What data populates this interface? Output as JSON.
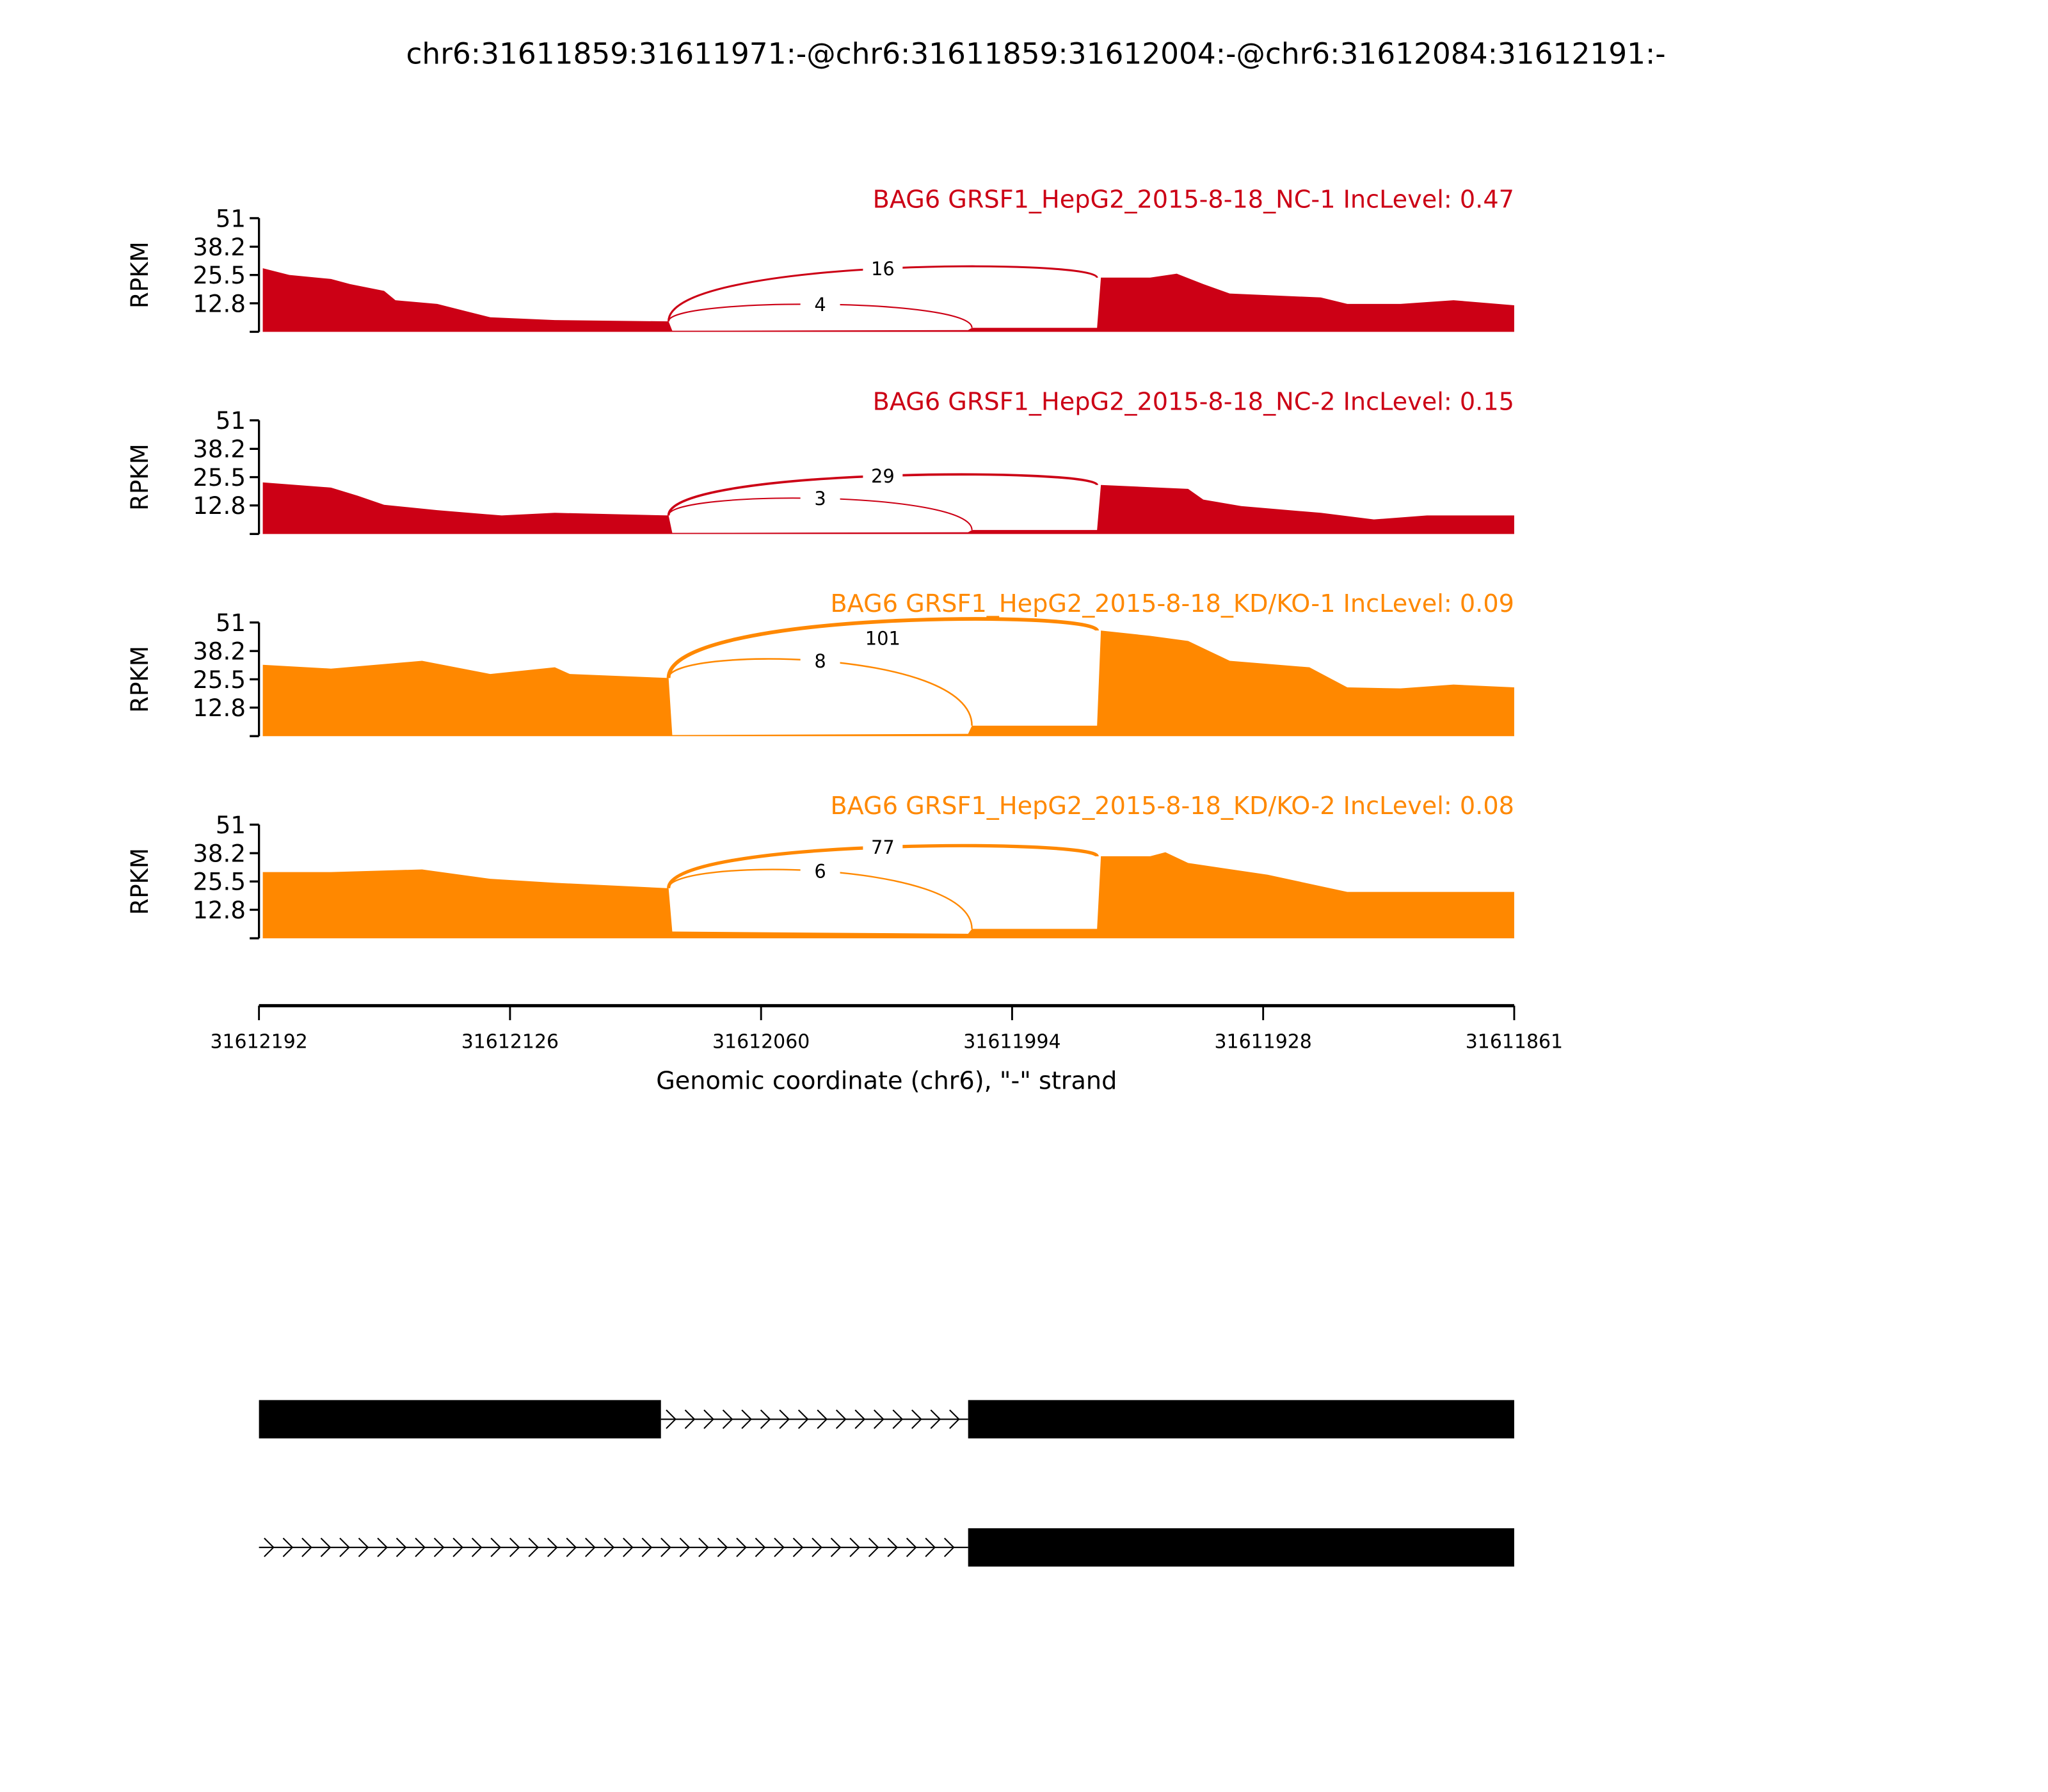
{
  "chart_data": {
    "type": "area",
    "title": "chr6:31611859:31611971:-@chr6:31611859:31612004:-@chr6:31612084:31612191:-",
    "xlabel": "Genomic coordinate (chr6), \"-\" strand",
    "ylabel": "RPKM",
    "xlim": [
      31612192,
      31611861
    ],
    "ylim": [
      0,
      51
    ],
    "x_ticks": [
      "31612192",
      "31612126",
      "31612060",
      "31611994",
      "31611928",
      "31611861"
    ],
    "y_ticks": [
      "51",
      "38.2",
      "25.5",
      "12.8"
    ],
    "y_tick_values": [
      51,
      38.2,
      25.5,
      12.8
    ],
    "exon1_end": 31612084,
    "exon2_start": 31612004,
    "exon3_start": 31611971,
    "samples": [
      {
        "label": "BAG6 GRSF1_HepG2_2015-8-18_NC-1 IncLevel: 0.47",
        "color": "#CC0015",
        "coverage": [
          [
            31612191,
            28.5
          ],
          [
            31612184,
            25.5
          ],
          [
            31612173,
            23.7
          ],
          [
            31612168,
            21.4
          ],
          [
            31612159,
            18.4
          ],
          [
            31612156,
            14.2
          ],
          [
            31612145,
            12.5
          ],
          [
            31612138,
            9.5
          ],
          [
            31612131,
            6.5
          ],
          [
            31612114,
            5.3
          ],
          [
            31612084,
            4.7
          ],
          [
            31612083,
            0.5
          ],
          [
            31612005,
            0.8
          ],
          [
            31612004,
            1.8
          ],
          [
            31611971,
            1.8
          ],
          [
            31611970,
            24.3
          ],
          [
            31611957,
            24.3
          ],
          [
            31611950,
            26.1
          ],
          [
            31611943,
            21.4
          ],
          [
            31611936,
            17.2
          ],
          [
            31611912,
            15.4
          ],
          [
            31611905,
            12.5
          ],
          [
            31611891,
            12.5
          ],
          [
            31611877,
            14.2
          ],
          [
            31611861,
            11.9
          ]
        ],
        "junctions": [
          {
            "count": "16",
            "to": "exon3"
          },
          {
            "count": "4",
            "to": "exon2"
          }
        ]
      },
      {
        "label": "BAG6 GRSF1_HepG2_2015-8-18_NC-2 IncLevel: 0.15",
        "color": "#CC0015",
        "coverage": [
          [
            31612191,
            23.1
          ],
          [
            31612173,
            20.8
          ],
          [
            31612166,
            17.2
          ],
          [
            31612159,
            13.1
          ],
          [
            31612145,
            10.7
          ],
          [
            31612128,
            8.3
          ],
          [
            31612114,
            9.5
          ],
          [
            31612084,
            8.3
          ],
          [
            31612083,
            0.5
          ],
          [
            31612005,
            0.8
          ],
          [
            31612004,
            1.8
          ],
          [
            31611971,
            1.8
          ],
          [
            31611970,
            22.0
          ],
          [
            31611947,
            20.2
          ],
          [
            31611943,
            15.4
          ],
          [
            31611933,
            12.5
          ],
          [
            31611912,
            9.5
          ],
          [
            31611898,
            6.5
          ],
          [
            31611884,
            8.3
          ],
          [
            31611861,
            8.3
          ]
        ],
        "junctions": [
          {
            "count": "29",
            "to": "exon3"
          },
          {
            "count": "3",
            "to": "exon2"
          }
        ]
      },
      {
        "label": "BAG6 GRSF1_HepG2_2015-8-18_KD/KO-1 IncLevel: 0.09",
        "color": "#FF8800",
        "coverage": [
          [
            31612191,
            32.0
          ],
          [
            31612173,
            30.3
          ],
          [
            31612149,
            33.8
          ],
          [
            31612131,
            27.9
          ],
          [
            31612114,
            30.9
          ],
          [
            31612110,
            27.9
          ],
          [
            31612084,
            26.1
          ],
          [
            31612083,
            0.5
          ],
          [
            31612005,
            1.0
          ],
          [
            31612004,
            4.7
          ],
          [
            31611971,
            4.7
          ],
          [
            31611970,
            47.4
          ],
          [
            31611957,
            45.0
          ],
          [
            31611947,
            42.7
          ],
          [
            31611936,
            33.8
          ],
          [
            31611915,
            30.9
          ],
          [
            31611905,
            21.9
          ],
          [
            31611891,
            21.4
          ],
          [
            31611877,
            23.1
          ],
          [
            31611861,
            21.9
          ]
        ],
        "junctions": [
          {
            "count": "101",
            "to": "exon3"
          },
          {
            "count": "8",
            "to": "exon2"
          }
        ]
      },
      {
        "label": "BAG6 GRSF1_HepG2_2015-8-18_KD/KO-2 IncLevel: 0.08",
        "color": "#FF8800",
        "coverage": [
          [
            31612191,
            29.7
          ],
          [
            31612173,
            29.7
          ],
          [
            31612149,
            30.9
          ],
          [
            31612131,
            26.7
          ],
          [
            31612114,
            24.9
          ],
          [
            31612084,
            22.5
          ],
          [
            31612083,
            3.0
          ],
          [
            31612005,
            2.0
          ],
          [
            31612004,
            4.2
          ],
          [
            31611971,
            4.2
          ],
          [
            31611970,
            36.8
          ],
          [
            31611957,
            36.8
          ],
          [
            31611953,
            38.6
          ],
          [
            31611947,
            33.8
          ],
          [
            31611926,
            28.5
          ],
          [
            31611905,
            20.8
          ],
          [
            31611861,
            20.8
          ]
        ],
        "junctions": [
          {
            "count": "77",
            "to": "exon3"
          },
          {
            "count": "6",
            "to": "exon2"
          }
        ]
      }
    ],
    "gene_models": [
      {
        "exons": [
          [
            31612192,
            31612086
          ],
          [
            31612005,
            31611861
          ]
        ]
      },
      {
        "exons": [
          [
            31612005,
            31611861
          ]
        ]
      }
    ]
  }
}
